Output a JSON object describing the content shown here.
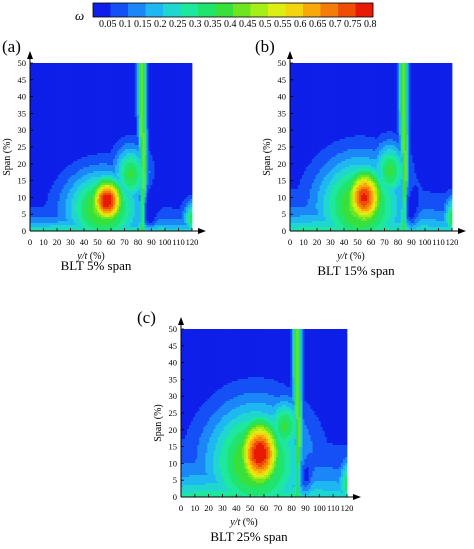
{
  "colorbar": {
    "symbol": "ω",
    "levels": [
      "0.05",
      "0.1",
      "0.15",
      "0.2",
      "0.25",
      "0.3",
      "0.35",
      "0.4",
      "0.45",
      "0.5",
      "0.55",
      "0.6",
      "0.65",
      "0.7",
      "0.75",
      "0.8"
    ],
    "colors": [
      "#0d1fe8",
      "#1450f5",
      "#1b86f7",
      "#1fb7f2",
      "#1fd7d0",
      "#1ee89e",
      "#20e46c",
      "#38e03b",
      "#6ee51e",
      "#a6ee18",
      "#dcef14",
      "#f4d40f",
      "#f8a80b",
      "#f57c08",
      "#ef4c06",
      "#e81a04"
    ]
  },
  "chart_data": [
    {
      "type": "heatmap",
      "panel_label": "(a)",
      "title": "BLT 5% span",
      "xlabel_italic": "y/t",
      "xlabel_unit": " (%)",
      "ylabel": "Span (%)",
      "xlim": [
        0,
        120
      ],
      "ylim": [
        0,
        50
      ],
      "xticks": [
        "0",
        "10",
        "20",
        "30",
        "40",
        "50",
        "60",
        "70",
        "80",
        "90",
        "100",
        "110",
        "120"
      ],
      "yticks": [
        "0",
        "5",
        "10",
        "15",
        "20",
        "25",
        "30",
        "35",
        "40",
        "45",
        "50"
      ],
      "wake_center_x": 83,
      "peak": {
        "x": 57,
        "y": 9,
        "value": 0.8
      },
      "blt_span": 5
    },
    {
      "type": "heatmap",
      "panel_label": "(b)",
      "title": "BLT 15% span",
      "xlabel_italic": "y/t",
      "xlabel_unit": " (%)",
      "ylabel": "Span (%)",
      "xlim": [
        0,
        120
      ],
      "ylim": [
        0,
        50
      ],
      "xticks": [
        "0",
        "10",
        "20",
        "30",
        "40",
        "50",
        "60",
        "70",
        "80",
        "90",
        "100",
        "110",
        "120"
      ],
      "yticks": [
        "0",
        "5",
        "10",
        "15",
        "20",
        "25",
        "30",
        "35",
        "40",
        "45",
        "50"
      ],
      "wake_center_x": 84,
      "peak": {
        "x": 55,
        "y": 10,
        "value": 0.75
      },
      "blt_span": 15
    },
    {
      "type": "heatmap",
      "panel_label": "(c)",
      "title": "BLT 25% span",
      "xlabel_italic": "y/t",
      "xlabel_unit": " (%)",
      "ylabel": "Span (%)",
      "xlim": [
        0,
        120
      ],
      "ylim": [
        0,
        50
      ],
      "xticks": [
        "0",
        "10",
        "20",
        "30",
        "40",
        "50",
        "60",
        "70",
        "80",
        "90",
        "100",
        "110",
        "120"
      ],
      "yticks": [
        "0",
        "5",
        "10",
        "15",
        "20",
        "25",
        "30",
        "35",
        "40",
        "45",
        "50"
      ],
      "wake_center_x": 84,
      "peak": {
        "x": 57,
        "y": 13,
        "value": 0.8
      },
      "blt_span": 25
    }
  ]
}
